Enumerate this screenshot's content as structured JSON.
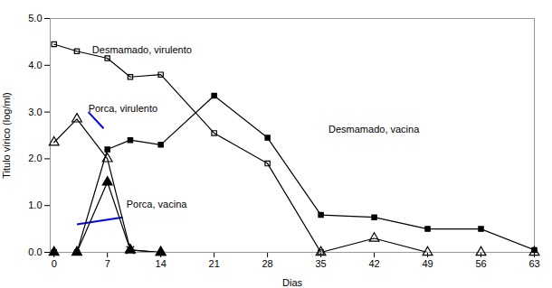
{
  "chart_data": {
    "type": "line",
    "xlabel": "Dias",
    "ylabel": "Titulo vírico (log/ml)",
    "xlim": [
      -0.5,
      63
    ],
    "ylim": [
      0.0,
      5.0
    ],
    "xticks": [
      0,
      7,
      14,
      21,
      28,
      35,
      42,
      49,
      56,
      63
    ],
    "yticks": [
      {
        "value": 0,
        "label": "0.0"
      },
      {
        "value": 1,
        "label": "1.0"
      },
      {
        "value": 2,
        "label": "2.0"
      },
      {
        "value": 3,
        "label": "3.0"
      },
      {
        "value": 4,
        "label": "4.0"
      },
      {
        "value": 5,
        "label": "5.0"
      }
    ],
    "series": [
      {
        "type": "line",
        "color": "black",
        "marker": "square_open",
        "x": [
          0,
          3,
          7,
          10,
          14,
          21,
          28,
          35
        ],
        "values": [
          4.45,
          4.3,
          4.15,
          3.75,
          3.8,
          2.55,
          1.9,
          0.0
        ]
      },
      {
        "type": "line",
        "color": "black",
        "marker": "square",
        "x": [
          0,
          3,
          7,
          10,
          14,
          21,
          28,
          35,
          42,
          49,
          56,
          63
        ],
        "values": [
          0.0,
          0.0,
          2.2,
          2.4,
          2.3,
          3.35,
          2.45,
          0.8,
          0.75,
          0.5,
          0.5,
          0.05
        ]
      },
      {
        "type": "line",
        "color": "black",
        "marker": "triangle_open",
        "x": [
          0,
          3,
          7,
          10,
          14
        ],
        "values": [
          2.35,
          2.85,
          2.0,
          0.05,
          0.0
        ]
      },
      {
        "type": "line",
        "color": "black",
        "marker": "triangle",
        "x": [
          0,
          3,
          7,
          10,
          14
        ],
        "values": [
          0.0,
          0.0,
          1.5,
          0.05,
          0.0
        ]
      },
      {
        "type": "line",
        "color": "black",
        "marker": "triangle_open",
        "x": [
          35,
          42,
          49,
          56,
          63
        ],
        "values": [
          0.0,
          0.3,
          0.0,
          0.0,
          0.0
        ]
      },
      {
        "type": "scatter",
        "color": "black",
        "marker": "x",
        "x": [
          10
        ],
        "values": [
          0.05
        ]
      }
    ],
    "connectors": [
      {
        "x1": 6.5,
        "y1": 2.65,
        "x2": 4.5,
        "y2": 3.0,
        "color": "blue"
      },
      {
        "x1": 3.0,
        "y1": 0.6,
        "x2": 9.0,
        "y2": 0.75,
        "color": "blue"
      }
    ],
    "annotations": [
      {
        "x": 5.0,
        "y": 4.25,
        "text": "Desmamado, virulento"
      },
      {
        "x": 4.5,
        "y": 3.0,
        "text": "Porca, virulento"
      },
      {
        "x": 9.5,
        "y": 0.95,
        "text": "Porca, vacina"
      },
      {
        "x": 36,
        "y": 2.55,
        "text": "Desmamado, vacina"
      }
    ]
  }
}
